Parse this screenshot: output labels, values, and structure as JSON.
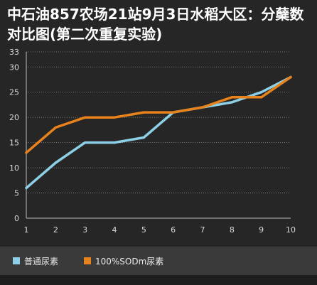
{
  "chart_data": {
    "type": "line",
    "title": "中石油857农场21站9月3日水稻大区：分蘖数对比图(第二次重复实验)",
    "x": [
      1,
      2,
      3,
      4,
      5,
      6,
      7,
      8,
      9,
      10
    ],
    "xticks": [
      "1",
      "2",
      "3",
      "4",
      "5",
      "6",
      "7",
      "8",
      "9",
      "10"
    ],
    "ylim": [
      0,
      33
    ],
    "yticks": [
      "0",
      "5",
      "10",
      "15",
      "20",
      "25",
      "30",
      "33"
    ],
    "grid": true,
    "legend_position": "bottom",
    "series": [
      {
        "name": "普通尿素",
        "color": "#8ccfe6",
        "values": [
          6,
          11,
          15,
          15,
          16,
          21,
          22,
          23,
          25,
          28
        ]
      },
      {
        "name": "100%SODm尿素",
        "color": "#e8821c",
        "values": [
          13,
          18,
          20,
          20,
          21,
          21,
          22,
          24,
          24,
          28
        ]
      }
    ]
  }
}
